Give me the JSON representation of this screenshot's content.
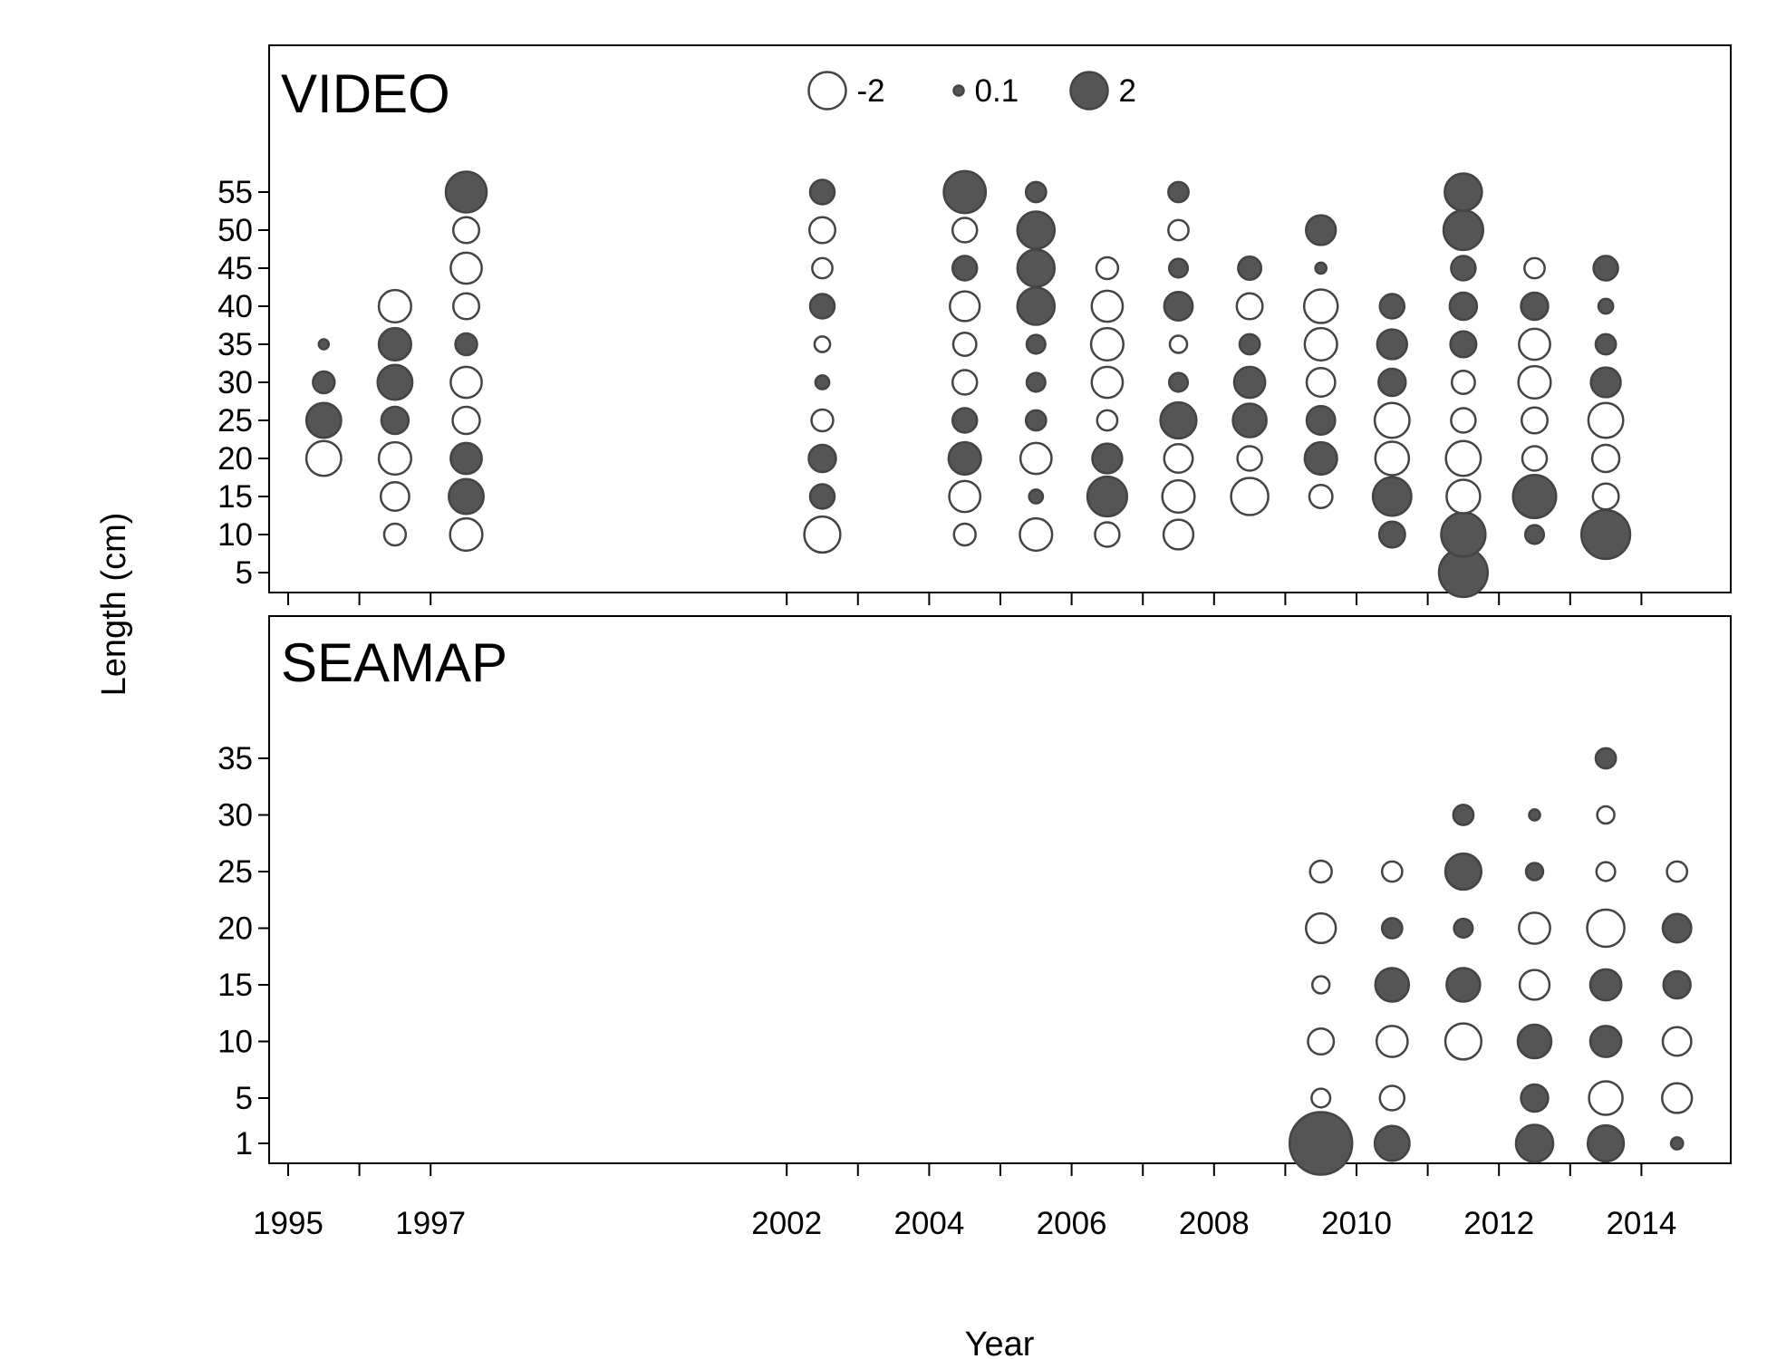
{
  "chart_data": {
    "type": "scatter",
    "subtype": "bubble",
    "xlabel": "Year",
    "ylabel": "Length (cm)",
    "x_ticks": [
      "1995",
      "1997",
      "2002",
      "2004",
      "2006",
      "2008",
      "2010",
      "2012",
      "2014"
    ],
    "legend": {
      "placement": "top-center",
      "entries": [
        {
          "label": "-2",
          "value": -2
        },
        {
          "label": "0.1",
          "value": 0.1
        },
        {
          "label": "2",
          "value": 2
        }
      ]
    },
    "colors": {
      "positive": "#555555",
      "negative": "#ffffff",
      "stroke": "#444444"
    },
    "panels": [
      {
        "name": "VIDEO",
        "y_ticks": [
          5,
          10,
          15,
          20,
          25,
          30,
          35,
          40,
          45,
          50,
          55
        ],
        "x_categories": [
          1995,
          1996,
          1997,
          2002,
          2004,
          2005,
          2006,
          2007,
          2008,
          2009,
          2010,
          2011,
          2012,
          2013
        ],
        "points": [
          {
            "x": 1995,
            "y": 20,
            "v": -1.8
          },
          {
            "x": 1995,
            "y": 25,
            "v": 1.8
          },
          {
            "x": 1995,
            "y": 30,
            "v": 0.8
          },
          {
            "x": 1995,
            "y": 35,
            "v": 0.1
          },
          {
            "x": 1996,
            "y": 10,
            "v": -0.8
          },
          {
            "x": 1996,
            "y": 15,
            "v": -1.3
          },
          {
            "x": 1996,
            "y": 20,
            "v": -1.6
          },
          {
            "x": 1996,
            "y": 25,
            "v": 1.2
          },
          {
            "x": 1996,
            "y": 30,
            "v": 1.8
          },
          {
            "x": 1996,
            "y": 35,
            "v": 1.6
          },
          {
            "x": 1996,
            "y": 40,
            "v": -1.6
          },
          {
            "x": 1997,
            "y": 10,
            "v": -1.6
          },
          {
            "x": 1997,
            "y": 15,
            "v": 1.8
          },
          {
            "x": 1997,
            "y": 20,
            "v": 1.5
          },
          {
            "x": 1997,
            "y": 25,
            "v": -1.2
          },
          {
            "x": 1997,
            "y": 30,
            "v": -1.5
          },
          {
            "x": 1997,
            "y": 35,
            "v": 0.8
          },
          {
            "x": 1997,
            "y": 40,
            "v": -1.1
          },
          {
            "x": 1997,
            "y": 45,
            "v": -1.5
          },
          {
            "x": 1997,
            "y": 50,
            "v": -1.1
          },
          {
            "x": 1997,
            "y": 55,
            "v": 2.3
          },
          {
            "x": 2002,
            "y": 10,
            "v": -1.9
          },
          {
            "x": 2002,
            "y": 15,
            "v": 1.0
          },
          {
            "x": 2002,
            "y": 20,
            "v": 1.2
          },
          {
            "x": 2002,
            "y": 25,
            "v": -0.8
          },
          {
            "x": 2002,
            "y": 30,
            "v": 0.3
          },
          {
            "x": 2002,
            "y": 35,
            "v": -0.4
          },
          {
            "x": 2002,
            "y": 40,
            "v": 1.0
          },
          {
            "x": 2002,
            "y": 45,
            "v": -0.7
          },
          {
            "x": 2002,
            "y": 50,
            "v": -1.1
          },
          {
            "x": 2002,
            "y": 55,
            "v": 1.0
          },
          {
            "x": 2004,
            "y": 10,
            "v": -0.8
          },
          {
            "x": 2004,
            "y": 15,
            "v": -1.5
          },
          {
            "x": 2004,
            "y": 20,
            "v": 1.6
          },
          {
            "x": 2004,
            "y": 25,
            "v": 1.0
          },
          {
            "x": 2004,
            "y": 30,
            "v": -1.0
          },
          {
            "x": 2004,
            "y": 35,
            "v": -0.9
          },
          {
            "x": 2004,
            "y": 40,
            "v": -1.4
          },
          {
            "x": 2004,
            "y": 45,
            "v": 1.0
          },
          {
            "x": 2004,
            "y": 50,
            "v": -1.0
          },
          {
            "x": 2004,
            "y": 55,
            "v": 2.4
          },
          {
            "x": 2005,
            "y": 10,
            "v": -1.6
          },
          {
            "x": 2005,
            "y": 15,
            "v": 0.3
          },
          {
            "x": 2005,
            "y": 20,
            "v": -1.5
          },
          {
            "x": 2005,
            "y": 25,
            "v": 0.7
          },
          {
            "x": 2005,
            "y": 30,
            "v": 0.6
          },
          {
            "x": 2005,
            "y": 35,
            "v": 0.6
          },
          {
            "x": 2005,
            "y": 40,
            "v": 2.0
          },
          {
            "x": 2005,
            "y": 45,
            "v": 2.0
          },
          {
            "x": 2005,
            "y": 50,
            "v": 2.0
          },
          {
            "x": 2005,
            "y": 55,
            "v": 0.7
          },
          {
            "x": 2006,
            "y": 10,
            "v": -1.0
          },
          {
            "x": 2006,
            "y": 15,
            "v": 2.2
          },
          {
            "x": 2006,
            "y": 20,
            "v": 1.4
          },
          {
            "x": 2006,
            "y": 25,
            "v": -0.7
          },
          {
            "x": 2006,
            "y": 30,
            "v": -1.5
          },
          {
            "x": 2006,
            "y": 35,
            "v": -1.6
          },
          {
            "x": 2006,
            "y": 40,
            "v": -1.5
          },
          {
            "x": 2006,
            "y": 45,
            "v": -0.8
          },
          {
            "x": 2007,
            "y": 10,
            "v": -1.4
          },
          {
            "x": 2007,
            "y": 15,
            "v": -1.6
          },
          {
            "x": 2007,
            "y": 20,
            "v": -1.3
          },
          {
            "x": 2007,
            "y": 25,
            "v": 1.9
          },
          {
            "x": 2007,
            "y": 30,
            "v": 0.6
          },
          {
            "x": 2007,
            "y": 35,
            "v": -0.5
          },
          {
            "x": 2007,
            "y": 40,
            "v": 1.3
          },
          {
            "x": 2007,
            "y": 45,
            "v": 0.6
          },
          {
            "x": 2007,
            "y": 50,
            "v": -0.7
          },
          {
            "x": 2007,
            "y": 55,
            "v": 0.7
          },
          {
            "x": 2008,
            "y": 15,
            "v": -2.0
          },
          {
            "x": 2008,
            "y": 20,
            "v": -1.0
          },
          {
            "x": 2008,
            "y": 25,
            "v": 1.7
          },
          {
            "x": 2008,
            "y": 30,
            "v": 1.5
          },
          {
            "x": 2008,
            "y": 35,
            "v": 0.7
          },
          {
            "x": 2008,
            "y": 40,
            "v": -1.1
          },
          {
            "x": 2008,
            "y": 45,
            "v": 0.9
          },
          {
            "x": 2009,
            "y": 15,
            "v": -0.9
          },
          {
            "x": 2009,
            "y": 20,
            "v": 1.6
          },
          {
            "x": 2009,
            "y": 25,
            "v": 1.3
          },
          {
            "x": 2009,
            "y": 30,
            "v": -1.3
          },
          {
            "x": 2009,
            "y": 35,
            "v": -1.6
          },
          {
            "x": 2009,
            "y": 40,
            "v": -1.7
          },
          {
            "x": 2009,
            "y": 45,
            "v": 0.15
          },
          {
            "x": 2009,
            "y": 50,
            "v": 1.4
          },
          {
            "x": 2010,
            "y": 10,
            "v": 1.1
          },
          {
            "x": 2010,
            "y": 15,
            "v": 2.1
          },
          {
            "x": 2010,
            "y": 20,
            "v": -1.7
          },
          {
            "x": 2010,
            "y": 25,
            "v": -1.8
          },
          {
            "x": 2010,
            "y": 30,
            "v": 1.2
          },
          {
            "x": 2010,
            "y": 35,
            "v": 1.4
          },
          {
            "x": 2010,
            "y": 40,
            "v": 1.0
          },
          {
            "x": 2011,
            "y": 5,
            "v": 3.0
          },
          {
            "x": 2011,
            "y": 10,
            "v": 2.6
          },
          {
            "x": 2011,
            "y": 15,
            "v": -1.7
          },
          {
            "x": 2011,
            "y": 20,
            "v": -1.8
          },
          {
            "x": 2011,
            "y": 25,
            "v": -1.0
          },
          {
            "x": 2011,
            "y": 30,
            "v": -0.9
          },
          {
            "x": 2011,
            "y": 35,
            "v": 1.1
          },
          {
            "x": 2011,
            "y": 40,
            "v": 1.2
          },
          {
            "x": 2011,
            "y": 45,
            "v": 1.0
          },
          {
            "x": 2011,
            "y": 50,
            "v": 2.2
          },
          {
            "x": 2011,
            "y": 55,
            "v": 2.0
          },
          {
            "x": 2012,
            "y": 10,
            "v": 0.6
          },
          {
            "x": 2012,
            "y": 15,
            "v": 2.5
          },
          {
            "x": 2012,
            "y": 20,
            "v": -1.0
          },
          {
            "x": 2012,
            "y": 25,
            "v": -1.1
          },
          {
            "x": 2012,
            "y": 30,
            "v": -1.6
          },
          {
            "x": 2012,
            "y": 35,
            "v": -1.5
          },
          {
            "x": 2012,
            "y": 40,
            "v": 1.2
          },
          {
            "x": 2012,
            "y": 45,
            "v": -0.7
          },
          {
            "x": 2013,
            "y": 10,
            "v": 3.0
          },
          {
            "x": 2013,
            "y": 15,
            "v": -1.1
          },
          {
            "x": 2013,
            "y": 20,
            "v": -1.2
          },
          {
            "x": 2013,
            "y": 25,
            "v": -1.8
          },
          {
            "x": 2013,
            "y": 30,
            "v": 1.4
          },
          {
            "x": 2013,
            "y": 35,
            "v": 0.7
          },
          {
            "x": 2013,
            "y": 40,
            "v": 0.35
          },
          {
            "x": 2013,
            "y": 45,
            "v": 1.0
          }
        ]
      },
      {
        "name": "SEAMAP",
        "y_ticks": [
          1,
          5,
          10,
          15,
          20,
          25,
          30,
          35
        ],
        "x_categories": [
          2009,
          2010,
          2011,
          2012,
          2013,
          2014
        ],
        "points": [
          {
            "x": 2009,
            "y": 1,
            "v": 4.3
          },
          {
            "x": 2009,
            "y": 5,
            "v": -0.6
          },
          {
            "x": 2009,
            "y": 10,
            "v": -1.1
          },
          {
            "x": 2009,
            "y": 15,
            "v": -0.5
          },
          {
            "x": 2009,
            "y": 20,
            "v": -1.4
          },
          {
            "x": 2009,
            "y": 25,
            "v": -0.8
          },
          {
            "x": 2010,
            "y": 1,
            "v": 1.8
          },
          {
            "x": 2010,
            "y": 5,
            "v": -1.0
          },
          {
            "x": 2010,
            "y": 10,
            "v": -1.5
          },
          {
            "x": 2010,
            "y": 15,
            "v": 1.7
          },
          {
            "x": 2010,
            "y": 20,
            "v": 0.7
          },
          {
            "x": 2010,
            "y": 25,
            "v": -0.7
          },
          {
            "x": 2011,
            "y": 10,
            "v": -1.9
          },
          {
            "x": 2011,
            "y": 15,
            "v": 1.7
          },
          {
            "x": 2011,
            "y": 20,
            "v": 0.6
          },
          {
            "x": 2011,
            "y": 25,
            "v": 1.9
          },
          {
            "x": 2011,
            "y": 30,
            "v": 0.7
          },
          {
            "x": 2012,
            "y": 1,
            "v": 2.0
          },
          {
            "x": 2012,
            "y": 5,
            "v": 1.2
          },
          {
            "x": 2012,
            "y": 10,
            "v": 1.7
          },
          {
            "x": 2012,
            "y": 15,
            "v": -1.4
          },
          {
            "x": 2012,
            "y": 20,
            "v": -1.5
          },
          {
            "x": 2012,
            "y": 25,
            "v": 0.5
          },
          {
            "x": 2012,
            "y": 30,
            "v": 0.15
          },
          {
            "x": 2013,
            "y": 1,
            "v": 1.9
          },
          {
            "x": 2013,
            "y": 5,
            "v": -1.7
          },
          {
            "x": 2013,
            "y": 10,
            "v": 1.5
          },
          {
            "x": 2013,
            "y": 15,
            "v": 1.5
          },
          {
            "x": 2013,
            "y": 20,
            "v": -2.0
          },
          {
            "x": 2013,
            "y": 25,
            "v": -0.6
          },
          {
            "x": 2013,
            "y": 30,
            "v": -0.5
          },
          {
            "x": 2013,
            "y": 35,
            "v": 0.7
          },
          {
            "x": 2014,
            "y": 1,
            "v": 0.2
          },
          {
            "x": 2014,
            "y": 5,
            "v": -1.4
          },
          {
            "x": 2014,
            "y": 10,
            "v": -1.3
          },
          {
            "x": 2014,
            "y": 15,
            "v": 1.2
          },
          {
            "x": 2014,
            "y": 20,
            "v": 1.3
          },
          {
            "x": 2014,
            "y": 25,
            "v": -0.7
          }
        ]
      }
    ]
  }
}
